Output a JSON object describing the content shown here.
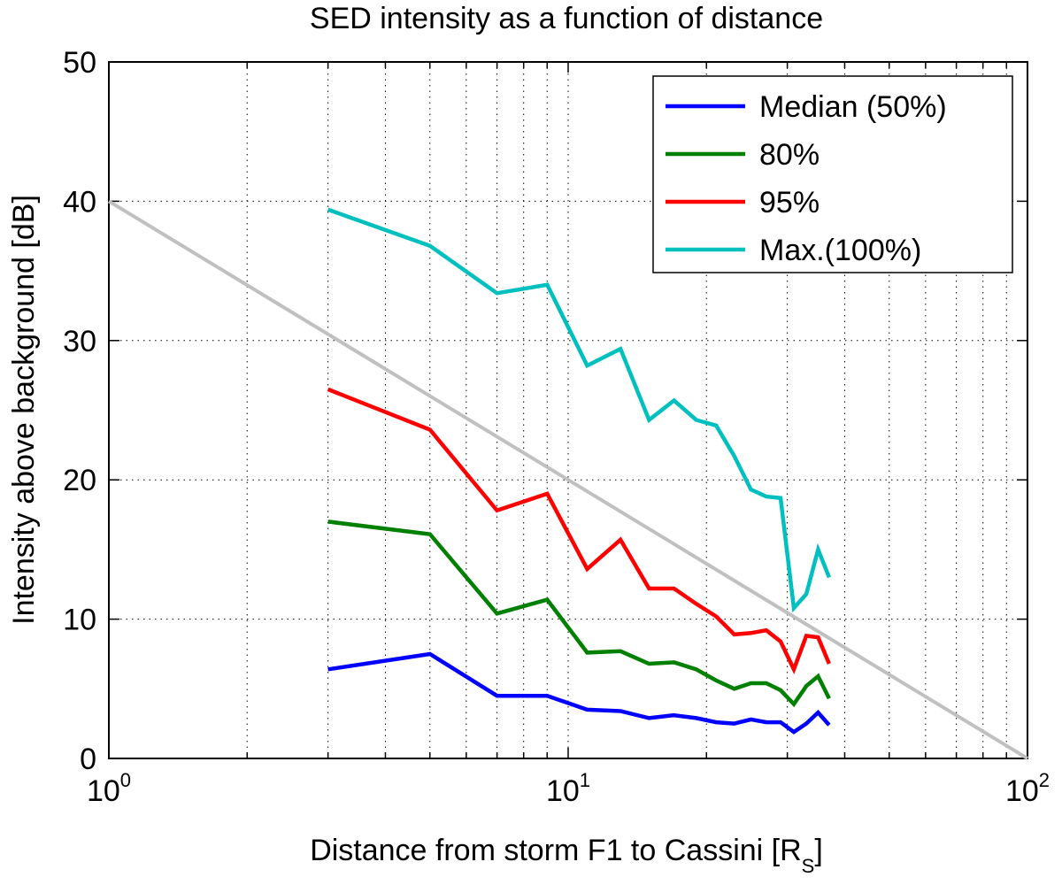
{
  "chart_data": {
    "type": "line",
    "title": "SED intensity as a function of distance",
    "xlabel": "Distance from storm F1 to Cassini [R",
    "xlabel_subscript": "S",
    "xlabel_suffix": "]",
    "ylabel": "Intensity above background [dB]",
    "xscale": "log",
    "xlim": [
      1,
      100
    ],
    "ylim": [
      0,
      50
    ],
    "grid": true,
    "legend_position": "top-right",
    "x_ticks": [
      {
        "base": "10",
        "exp": "0",
        "value": 1
      },
      {
        "base": "10",
        "exp": "1",
        "value": 10
      },
      {
        "base": "10",
        "exp": "2",
        "value": 100
      }
    ],
    "y_ticks": [
      "0",
      "10",
      "20",
      "30",
      "40",
      "50"
    ],
    "reference_line": {
      "x": [
        1,
        100
      ],
      "y": [
        40,
        0
      ],
      "color": "#c0c0c0"
    },
    "x": [
      3,
      5,
      7,
      9,
      11,
      13,
      15,
      17,
      19,
      21,
      23,
      25,
      27,
      29,
      31,
      33,
      35,
      37
    ],
    "series": [
      {
        "name": "Median (50%)",
        "color": "#0000ff",
        "values": [
          6.4,
          7.5,
          4.5,
          4.5,
          3.5,
          3.4,
          2.9,
          3.1,
          2.9,
          2.6,
          2.5,
          2.8,
          2.6,
          2.6,
          1.9,
          2.5,
          3.3,
          2.4
        ]
      },
      {
        "name": "80%",
        "color": "#008000",
        "values": [
          17.0,
          16.1,
          10.4,
          11.4,
          7.6,
          7.7,
          6.8,
          6.9,
          6.4,
          5.6,
          5.0,
          5.4,
          5.4,
          4.9,
          3.9,
          5.2,
          5.9,
          4.3
        ]
      },
      {
        "name": "95%",
        "color": "#ff0000",
        "values": [
          26.5,
          23.6,
          17.8,
          19.0,
          13.6,
          15.7,
          12.2,
          12.2,
          11.1,
          10.2,
          8.9,
          9.0,
          9.2,
          8.4,
          6.4,
          8.8,
          8.7,
          6.8
        ]
      },
      {
        "name": "Max.(100%)",
        "color": "#00bfbf",
        "values": [
          39.4,
          36.8,
          33.4,
          34.0,
          28.2,
          29.4,
          24.3,
          25.7,
          24.3,
          23.9,
          21.7,
          19.3,
          18.8,
          18.7,
          10.8,
          11.8,
          15.0,
          13.0
        ]
      }
    ]
  }
}
